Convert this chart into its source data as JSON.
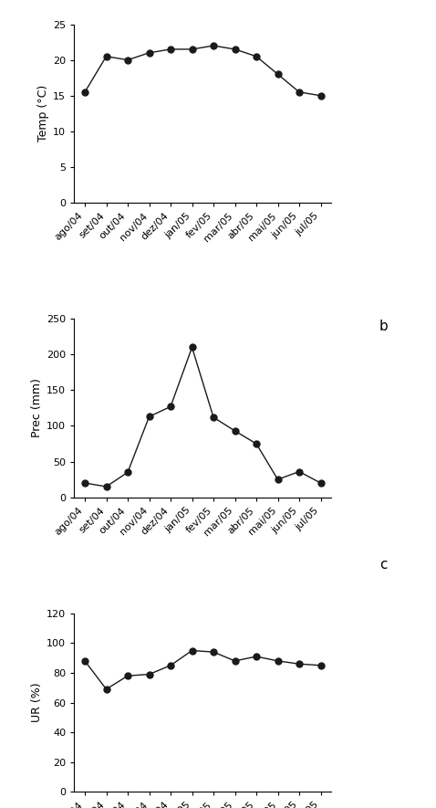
{
  "months": [
    "ago/04",
    "set/04",
    "out/04",
    "nov/04",
    "dez/04",
    "jan/05",
    "fev/05",
    "mar/05",
    "abr/05",
    "mai/05",
    "jun/05",
    "jul/05"
  ],
  "temp": [
    15.5,
    20.5,
    20.0,
    21.0,
    21.5,
    21.5,
    22.0,
    21.5,
    20.5,
    18.0,
    15.5,
    15.0
  ],
  "prec": [
    20.0,
    15.0,
    35.0,
    113.0,
    127.0,
    210.0,
    112.0,
    93.0,
    75.0,
    25.0,
    36.0,
    20.0
  ],
  "ur": [
    88.0,
    69.0,
    78.0,
    79.0,
    85.0,
    95.0,
    94.0,
    88.0,
    91.0,
    88.0,
    86.0,
    85.0
  ],
  "temp_ylabel": "Temp (°C)",
  "prec_ylabel": "Prec (mm)",
  "ur_ylabel": "UR (%)",
  "temp_ylim": [
    0,
    25
  ],
  "temp_yticks": [
    0,
    5,
    10,
    15,
    20,
    25
  ],
  "prec_ylim": [
    0,
    250
  ],
  "prec_yticks": [
    0,
    50,
    100,
    150,
    200,
    250
  ],
  "ur_ylim": [
    0,
    120
  ],
  "ur_yticks": [
    0,
    20,
    40,
    60,
    80,
    100,
    120
  ],
  "line_color": "#1a1a1a",
  "marker": "o",
  "marker_size": 5,
  "bg_color": "#ffffff",
  "panel_labels": [
    "b",
    "c"
  ],
  "label_fontsize": 11,
  "tick_fontsize": 8,
  "ylabel_fontsize": 9
}
